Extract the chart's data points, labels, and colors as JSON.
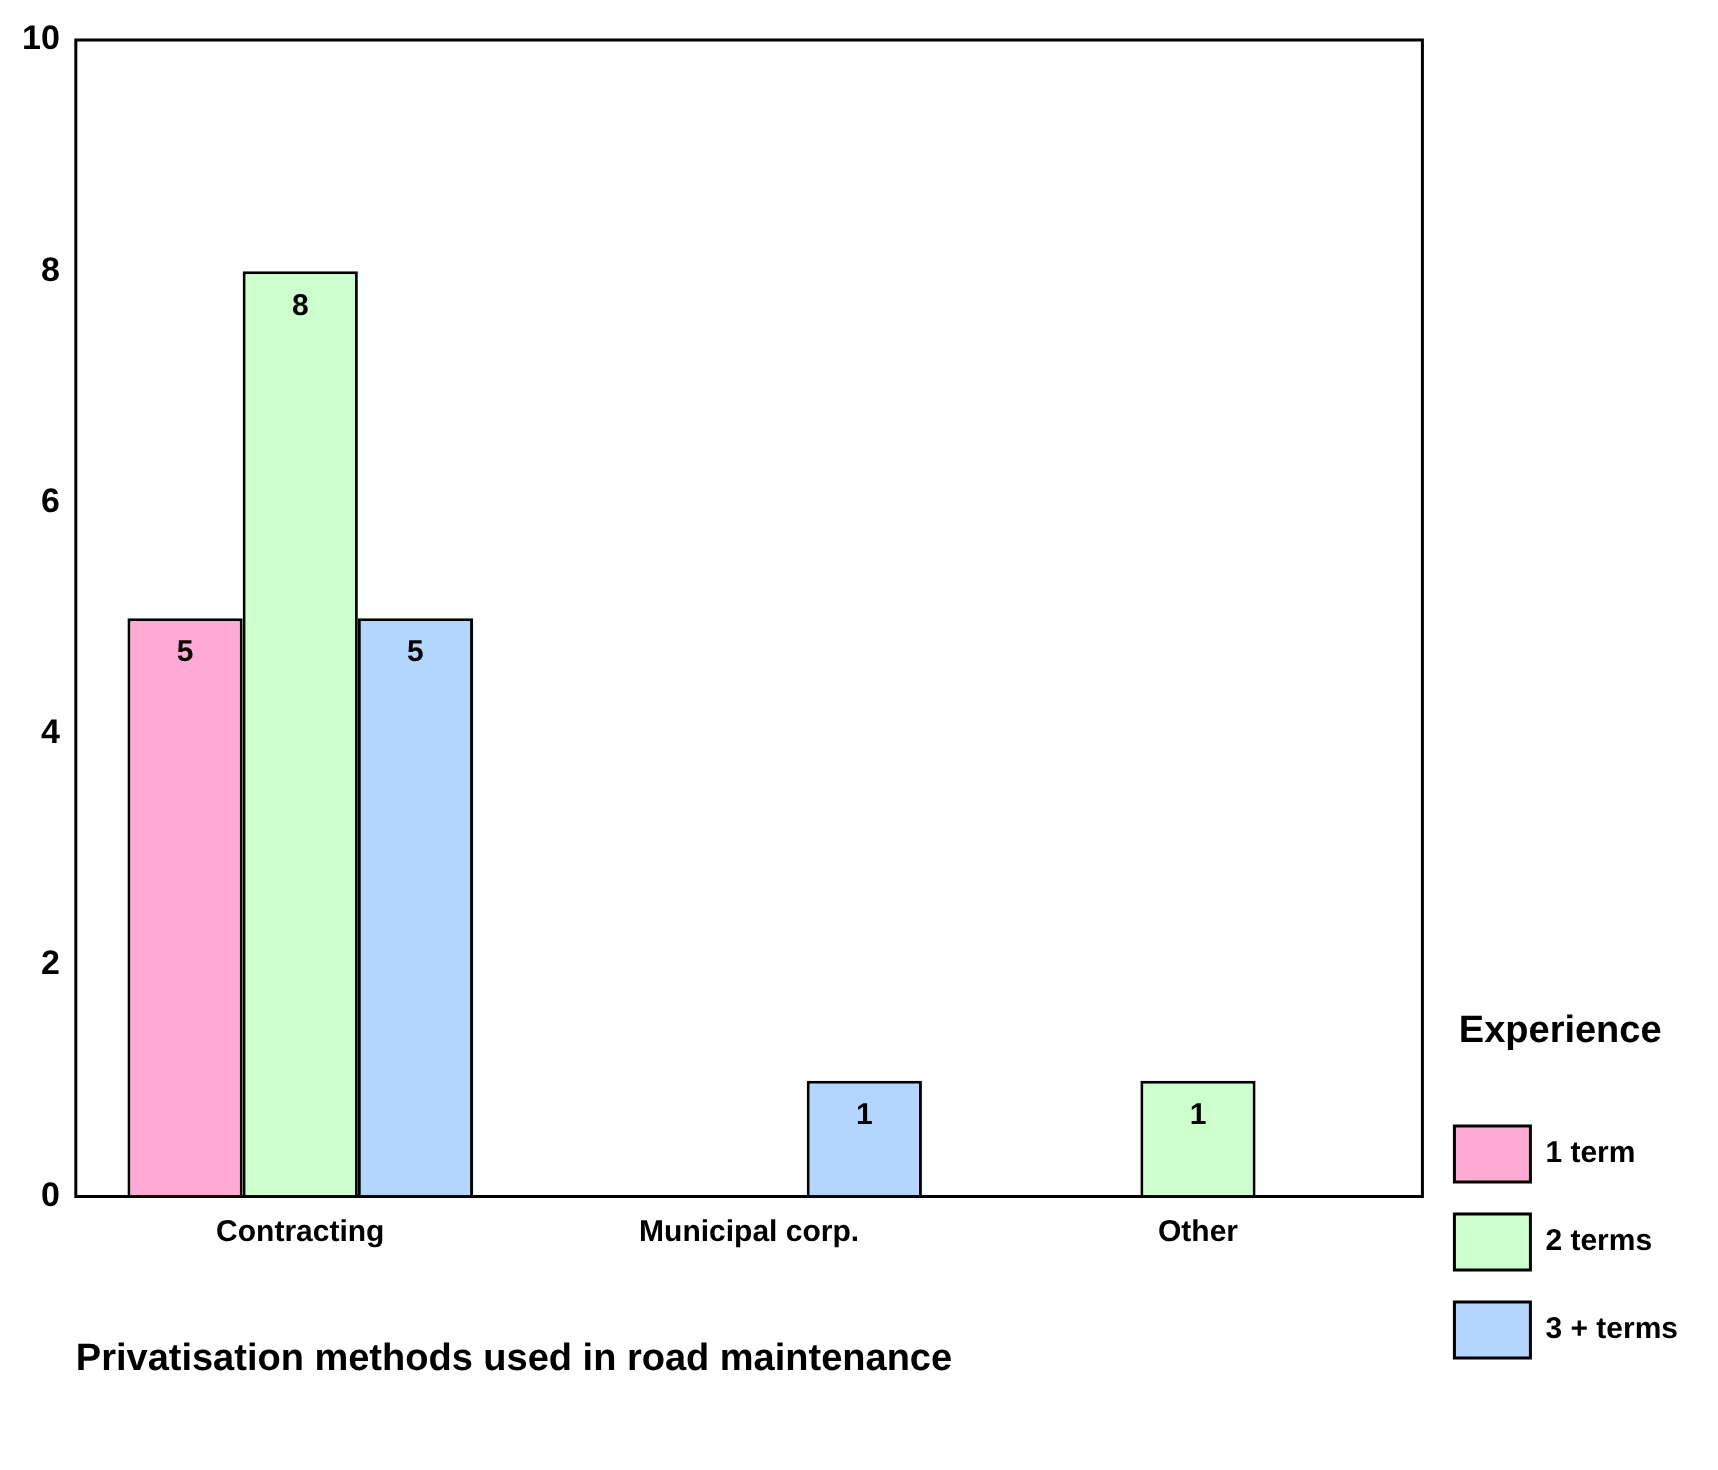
{
  "chart_data": {
    "type": "bar",
    "xlabel": "Privatisation methods used in road maintenance",
    "legend_title": "Experience",
    "categories": [
      "Contracting",
      "Municipal corp.",
      "Other"
    ],
    "series": [
      {
        "name": "1 term",
        "color": "#ffaad5",
        "values": [
          5,
          null,
          null
        ]
      },
      {
        "name": "2 terms",
        "color": "#ccffcc",
        "values": [
          8,
          null,
          1
        ]
      },
      {
        "name": "3 + terms",
        "color": "#b3d6ff",
        "values": [
          5,
          1,
          null
        ]
      }
    ],
    "ylim": [
      0,
      10
    ],
    "yticks": [
      0,
      2,
      4,
      6,
      8,
      10
    ],
    "grid": false,
    "legend": "right",
    "data_labels": true
  }
}
